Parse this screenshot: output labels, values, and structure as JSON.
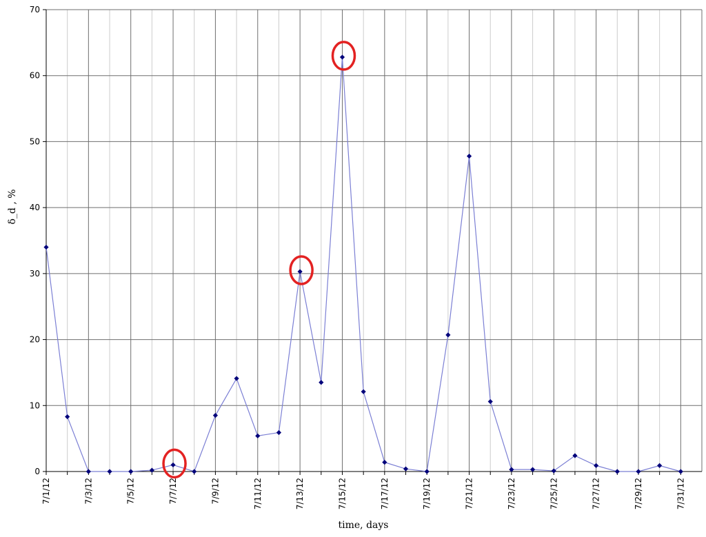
{
  "chart_data": {
    "type": "line",
    "title": "",
    "xlabel": "time, days",
    "ylabel": "δ_d , %",
    "ylim": [
      0,
      70
    ],
    "yticks": [
      0,
      10,
      20,
      30,
      40,
      50,
      60,
      70
    ],
    "grid": true,
    "legend": "none",
    "colors": {
      "line": "#7b7fd4",
      "marker": "#00007a",
      "highlight": "#e32222",
      "grid_major": "#6e6e6e",
      "grid_minor": "#cccccc"
    },
    "x": [
      "7/1/12",
      "7/2/12",
      "7/3/12",
      "7/4/12",
      "7/5/12",
      "7/6/12",
      "7/7/12",
      "7/8/12",
      "7/9/12",
      "7/10/12",
      "7/11/12",
      "7/12/12",
      "7/13/12",
      "7/14/12",
      "7/15/12",
      "7/16/12",
      "7/17/12",
      "7/18/12",
      "7/19/12",
      "7/20/12",
      "7/21/12",
      "7/22/12",
      "7/23/12",
      "7/24/12",
      "7/25/12",
      "7/26/12",
      "7/27/12",
      "7/28/12",
      "7/29/12",
      "7/30/12",
      "7/31/12"
    ],
    "xtick_labels": [
      "7/1/12",
      "7/3/12",
      "7/5/12",
      "7/7/12",
      "7/9/12",
      "7/11/12",
      "7/13/12",
      "7/15/12",
      "7/17/12",
      "7/19/12",
      "7/21/12",
      "7/23/12",
      "7/25/12",
      "7/27/12",
      "7/29/12",
      "7/31/12"
    ],
    "series": [
      {
        "values": [
          34.0,
          8.3,
          0.0,
          0.0,
          0.0,
          0.2,
          1.0,
          0.0,
          8.5,
          14.1,
          5.4,
          5.9,
          30.3,
          13.5,
          62.8,
          12.1,
          1.4,
          0.4,
          0.0,
          20.7,
          47.8,
          10.6,
          0.3,
          0.3,
          0.1,
          2.4,
          0.9,
          0.0,
          0.0,
          0.9,
          0.0
        ]
      }
    ],
    "highlighted_points": [
      "7/7/12",
      "7/13/12",
      "7/15/12"
    ]
  }
}
